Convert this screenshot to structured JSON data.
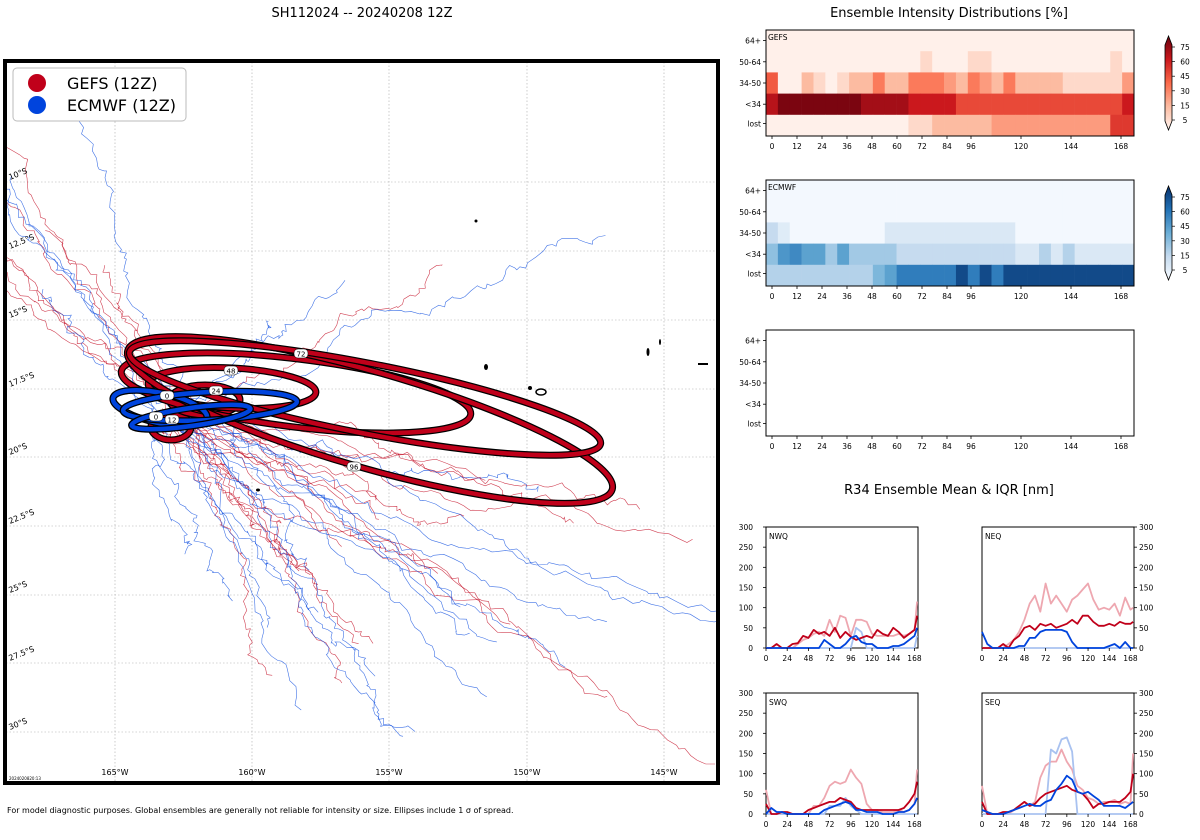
{
  "figure_title": "SH112024 -- 20240208 12Z",
  "footnote": "For model diagnostic purposes. Global ensembles are generally not reliable for intensity or size. Ellipses include 1 σ of spread.",
  "timestamp": "2024020820:13",
  "colors": {
    "gefs": "#c0001a",
    "ecmwf": "#0044dd",
    "gefs_light": "#eea7b0",
    "ecmwf_light": "#a9c2f0"
  },
  "chart_data": [
    {
      "type": "map",
      "name": "track-map",
      "legend": [
        {
          "label": "GEFS (12Z)",
          "color": "#c0001a"
        },
        {
          "label": "ECMWF (12Z)",
          "color": "#0044dd"
        }
      ],
      "lon_ticks": [
        "165°W",
        "160°W",
        "155°W",
        "150°W",
        "145°W"
      ],
      "lat_ticks": [
        "10°S",
        "12.5°S",
        "15°S",
        "17.5°S",
        "20°S",
        "22.5°S",
        "25°S",
        "27.5°S",
        "30°S"
      ],
      "xlim": [
        -169,
        -143
      ],
      "ylim": [
        -32,
        -6.5
      ],
      "ellipse_labels": [
        "0",
        "12",
        "24",
        "48",
        "72",
        "96"
      ]
    },
    {
      "type": "heatmap",
      "name": "intensity-distributions",
      "title": "Ensemble Intensity Distributions [%]",
      "x_ticks": [
        "0",
        "12",
        "24",
        "36",
        "48",
        "60",
        "72",
        "84",
        "96",
        "120",
        "144",
        "168"
      ],
      "y_labels": [
        "64+",
        "50-64",
        "34-50",
        "<34",
        "lost"
      ],
      "colorbar_ticks": [
        "75",
        "60",
        "45",
        "30",
        "15",
        "5"
      ],
      "panels": [
        {
          "label": "GEFS",
          "cmap": "reds",
          "rows": {
            "64+": [
              2,
              2,
              2,
              2,
              2,
              2,
              2,
              2,
              2,
              2,
              2,
              2,
              2,
              2,
              2,
              2,
              2,
              2,
              2,
              2,
              2,
              2,
              2,
              2,
              2,
              2,
              2,
              2,
              2,
              2,
              2
            ],
            "50-64": [
              2,
              2,
              2,
              2,
              2,
              2,
              2,
              2,
              2,
              2,
              2,
              2,
              2,
              12,
              2,
              2,
              2,
              12,
              12,
              2,
              2,
              2,
              2,
              2,
              2,
              2,
              2,
              2,
              2,
              12,
              2
            ],
            "34-50": [
              55,
              2,
              2,
              25,
              12,
              2,
              12,
              25,
              25,
              45,
              25,
              25,
              45,
              45,
              45,
              35,
              25,
              45,
              35,
              25,
              45,
              25,
              25,
              25,
              25,
              12,
              12,
              12,
              12,
              12,
              35
            ],
            "<34": [
              80,
              95,
              95,
              95,
              95,
              95,
              95,
              95,
              85,
              85,
              85,
              85,
              75,
              75,
              75,
              75,
              60,
              60,
              60,
              60,
              60,
              60,
              60,
              60,
              60,
              60,
              60,
              60,
              60,
              60,
              75
            ],
            "lost": [
              2,
              2,
              2,
              2,
              2,
              2,
              2,
              2,
              2,
              2,
              2,
              2,
              12,
              12,
              25,
              25,
              25,
              25,
              25,
              35,
              35,
              35,
              35,
              35,
              35,
              35,
              35,
              35,
              35,
              65,
              65
            ]
          }
        },
        {
          "label": "ECMWF",
          "cmap": "blues",
          "rows": {
            "64+": [
              2,
              2,
              2,
              2,
              2,
              2,
              2,
              2,
              2,
              2,
              2,
              2,
              2,
              2,
              2,
              2,
              2,
              2,
              2,
              2,
              2,
              2,
              2,
              2,
              2,
              2,
              2,
              2,
              2,
              2,
              2
            ],
            "50-64": [
              2,
              2,
              2,
              2,
              2,
              2,
              2,
              2,
              2,
              2,
              2,
              2,
              2,
              2,
              2,
              2,
              2,
              2,
              2,
              2,
              2,
              2,
              2,
              2,
              2,
              2,
              2,
              2,
              2,
              2,
              2
            ],
            "34-50": [
              25,
              12,
              2,
              2,
              2,
              2,
              2,
              2,
              2,
              2,
              15,
              15,
              15,
              15,
              15,
              15,
              15,
              15,
              15,
              15,
              15,
              2,
              2,
              2,
              2,
              2,
              2,
              2,
              2,
              2,
              2
            ],
            "<34": [
              40,
              60,
              65,
              55,
              55,
              35,
              55,
              35,
              35,
              35,
              35,
              25,
              25,
              25,
              25,
              25,
              25,
              25,
              25,
              25,
              25,
              15,
              15,
              30,
              15,
              30,
              15,
              15,
              15,
              15,
              15
            ],
            "lost": [
              30,
              30,
              30,
              30,
              30,
              30,
              30,
              30,
              30,
              45,
              55,
              70,
              70,
              70,
              70,
              70,
              90,
              70,
              90,
              70,
              90,
              90,
              90,
              90,
              90,
              90,
              90,
              90,
              90,
              90,
              90
            ]
          }
        },
        {
          "label": "",
          "cmap": "none",
          "rows": {}
        }
      ]
    },
    {
      "type": "line",
      "name": "r34-mean-iqr",
      "title": "R34 Ensemble Mean & IQR [nm]",
      "x": [
        0,
        6,
        12,
        18,
        24,
        30,
        36,
        42,
        48,
        54,
        60,
        66,
        72,
        78,
        84,
        90,
        96,
        102,
        108,
        114,
        120,
        126,
        132,
        138,
        144,
        150,
        156,
        162,
        168,
        171
      ],
      "x_ticks": [
        "0",
        "24",
        "48",
        "72",
        "96",
        "120",
        "144",
        "168"
      ],
      "ylim": [
        0,
        300
      ],
      "y_ticks": [
        "0",
        "50",
        "100",
        "150",
        "200",
        "250",
        "300"
      ],
      "panels": [
        {
          "label": "NWQ",
          "gefs_iqr": [
            0,
            0,
            0,
            0,
            0,
            0,
            10,
            20,
            25,
            35,
            40,
            30,
            70,
            40,
            80,
            75,
            30,
            70,
            70,
            65,
            35,
            30,
            30,
            30,
            30,
            35,
            30,
            35,
            45,
            115
          ],
          "gefs_mean": [
            0,
            0,
            10,
            0,
            0,
            10,
            12,
            30,
            25,
            45,
            35,
            40,
            30,
            50,
            25,
            40,
            28,
            20,
            25,
            30,
            25,
            45,
            35,
            30,
            50,
            40,
            25,
            35,
            45,
            80
          ],
          "ecmwf_iqr": [
            0,
            0,
            0,
            0,
            0,
            0,
            0,
            0,
            0,
            0,
            0,
            0,
            0,
            0,
            0,
            0,
            0,
            50,
            40,
            0,
            0,
            0,
            0,
            0,
            0,
            0,
            0,
            0,
            0,
            30
          ],
          "ecmwf_mean": [
            0,
            0,
            0,
            0,
            0,
            0,
            0,
            0,
            0,
            0,
            0,
            20,
            10,
            0,
            0,
            10,
            25,
            30,
            15,
            10,
            10,
            0,
            0,
            0,
            5,
            5,
            10,
            20,
            30,
            50
          ]
        },
        {
          "label": "NEQ",
          "gefs_iqr": [
            0,
            0,
            0,
            0,
            0,
            10,
            20,
            40,
            70,
            110,
            130,
            90,
            160,
            110,
            130,
            110,
            90,
            120,
            130,
            145,
            160,
            120,
            95,
            100,
            95,
            110,
            80,
            125,
            95,
            100
          ],
          "gefs_mean": [
            0,
            0,
            0,
            0,
            10,
            0,
            20,
            30,
            50,
            55,
            45,
            60,
            55,
            60,
            50,
            55,
            60,
            70,
            60,
            80,
            80,
            65,
            55,
            55,
            60,
            55,
            65,
            60,
            60,
            65
          ],
          "ecmwf_iqr": [
            0,
            0,
            0,
            0,
            0,
            0,
            0,
            0,
            0,
            0,
            0,
            0,
            0,
            0,
            0,
            0,
            0,
            0,
            0,
            0,
            0,
            0,
            0,
            0,
            0,
            0,
            0,
            0,
            0,
            0
          ],
          "ecmwf_mean": [
            40,
            10,
            0,
            0,
            0,
            0,
            0,
            5,
            5,
            25,
            25,
            40,
            45,
            45,
            45,
            45,
            40,
            15,
            0,
            0,
            0,
            0,
            0,
            0,
            5,
            10,
            0,
            15,
            0,
            0
          ]
        },
        {
          "label": "SWQ",
          "gefs_iqr": [
            60,
            0,
            0,
            0,
            0,
            0,
            0,
            0,
            0,
            20,
            20,
            40,
            70,
            80,
            75,
            80,
            110,
            90,
            75,
            25,
            10,
            10,
            5,
            5,
            5,
            10,
            5,
            10,
            25,
            110
          ],
          "gefs_mean": [
            25,
            0,
            0,
            5,
            5,
            0,
            0,
            0,
            10,
            15,
            20,
            25,
            30,
            30,
            40,
            35,
            30,
            15,
            10,
            10,
            10,
            10,
            10,
            10,
            10,
            10,
            15,
            30,
            50,
            80
          ],
          "ecmwf_iqr": [
            0,
            0,
            0,
            0,
            0,
            0,
            0,
            0,
            0,
            0,
            0,
            0,
            20,
            20,
            20,
            40,
            20,
            10,
            0,
            0,
            0,
            0,
            0,
            0,
            0,
            0,
            0,
            0,
            0,
            0
          ],
          "ecmwf_mean": [
            0,
            15,
            5,
            5,
            0,
            0,
            0,
            0,
            0,
            0,
            0,
            10,
            15,
            20,
            25,
            30,
            25,
            10,
            10,
            5,
            5,
            5,
            0,
            0,
            0,
            5,
            5,
            10,
            25,
            40
          ]
        },
        {
          "label": "SEQ",
          "gefs_iqr": [
            70,
            0,
            0,
            0,
            0,
            0,
            10,
            20,
            30,
            20,
            30,
            90,
            120,
            130,
            130,
            160,
            130,
            110,
            70,
            60,
            40,
            35,
            25,
            30,
            30,
            35,
            25,
            30,
            25,
            150
          ],
          "gefs_mean": [
            30,
            0,
            0,
            0,
            5,
            5,
            10,
            20,
            30,
            20,
            25,
            40,
            50,
            55,
            60,
            65,
            70,
            60,
            55,
            50,
            35,
            15,
            25,
            25,
            30,
            30,
            30,
            40,
            55,
            100
          ],
          "ecmwf_iqr": [
            0,
            0,
            0,
            0,
            0,
            0,
            0,
            0,
            0,
            0,
            0,
            0,
            0,
            160,
            150,
            185,
            190,
            155,
            0,
            0,
            0,
            0,
            0,
            0,
            0,
            0,
            0,
            0,
            0,
            0
          ],
          "ecmwf_mean": [
            10,
            5,
            0,
            0,
            0,
            5,
            10,
            15,
            20,
            25,
            20,
            20,
            30,
            35,
            60,
            75,
            95,
            85,
            55,
            50,
            55,
            45,
            35,
            20,
            20,
            20,
            20,
            15,
            25,
            30
          ]
        }
      ]
    }
  ]
}
